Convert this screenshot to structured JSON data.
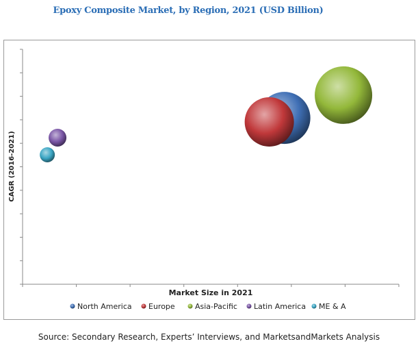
{
  "chart_data": {
    "type": "scatter",
    "subtype": "bubble",
    "title": "Epoxy Composite Market, by Region, 2021 (USD Billion)",
    "xlabel": "Market Size in 2021",
    "ylabel": "CAGR (2016-2021)",
    "xlim": [
      0,
      7
    ],
    "ylim": [
      0,
      10
    ],
    "x_tick_count": 8,
    "y_tick_count": 11,
    "grid": false,
    "legend_position": "bottom",
    "series": [
      {
        "name": "North America",
        "x": 4.87,
        "y": 7.08,
        "size": 1444,
        "color": "#3f6fb5"
      },
      {
        "name": "Europe",
        "x": 4.59,
        "y": 6.91,
        "size": 1296,
        "color": "#c0383a"
      },
      {
        "name": "Asia-Pacific",
        "x": 5.97,
        "y": 8.05,
        "size": 1764,
        "color": "#93b83a"
      },
      {
        "name": "Latin America",
        "x": 0.65,
        "y": 6.24,
        "size": 169,
        "color": "#7a56a6"
      },
      {
        "name": "ME & A",
        "x": 0.46,
        "y": 5.51,
        "size": 121,
        "color": "#3ba6c4"
      }
    ]
  },
  "source": "Source: Secondary Research, Experts’ Interviews, and MarketsandMarkets Analysis"
}
